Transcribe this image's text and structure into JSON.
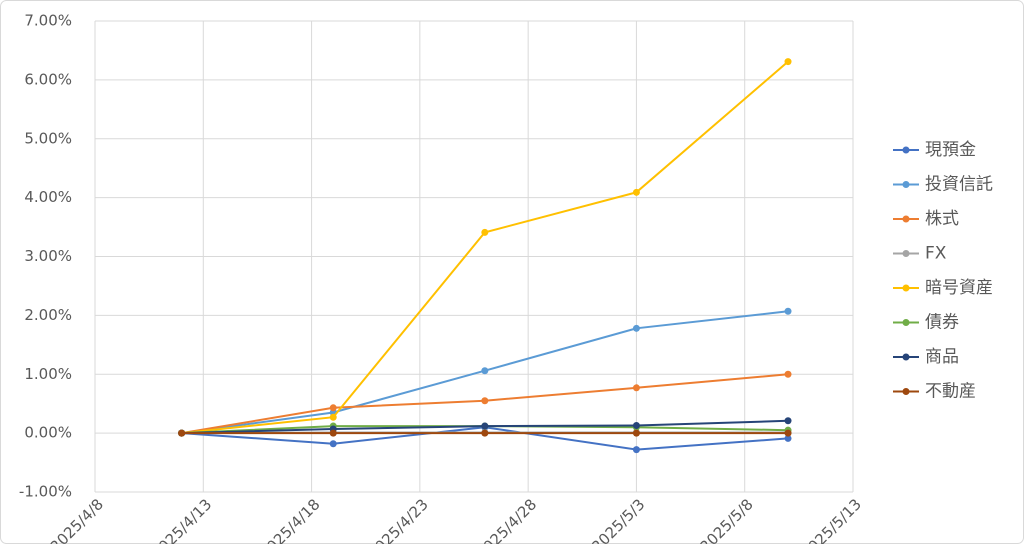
{
  "chart_data": {
    "type": "line",
    "x": [
      "2025/4/12",
      "2025/4/19",
      "2025/4/26",
      "2025/5/3",
      "2025/5/10"
    ],
    "xlim": [
      "2025/4/8",
      "2025/5/13"
    ],
    "xticks": [
      "2025/4/8",
      "2025/4/13",
      "2025/4/18",
      "2025/4/23",
      "2025/4/28",
      "2025/5/3",
      "2025/5/8",
      "2025/5/13"
    ],
    "ylim": [
      -1,
      7
    ],
    "yticks": [
      {
        "value": -1,
        "label": "-1.00%"
      },
      {
        "value": 0,
        "label": "0.00%"
      },
      {
        "value": 1,
        "label": "1.00%"
      },
      {
        "value": 2,
        "label": "2.00%"
      },
      {
        "value": 3,
        "label": "3.00%"
      },
      {
        "value": 4,
        "label": "4.00%"
      },
      {
        "value": 5,
        "label": "5.00%"
      },
      {
        "value": 6,
        "label": "6.00%"
      },
      {
        "value": 7,
        "label": "7.00%"
      }
    ],
    "grid": true,
    "legend": "right",
    "series": [
      {
        "name": "現預金",
        "color": "#4472c4",
        "values": [
          0,
          -0.18,
          0.1,
          -0.28,
          -0.09
        ]
      },
      {
        "name": "投資信託",
        "color": "#5b9bd5",
        "values": [
          0,
          0.35,
          1.06,
          1.78,
          2.07
        ]
      },
      {
        "name": "株式",
        "color": "#ed7d31",
        "values": [
          0,
          0.43,
          0.55,
          0.77,
          1.0
        ]
      },
      {
        "name": "FX",
        "color": "#a5a5a5",
        "values": [
          0,
          0.01,
          0.01,
          0.01,
          0.01
        ]
      },
      {
        "name": "暗号資産",
        "color": "#ffc000",
        "values": [
          0,
          0.27,
          3.41,
          4.09,
          6.31
        ]
      },
      {
        "name": "債券",
        "color": "#70ad47",
        "values": [
          0,
          0.12,
          0.12,
          0.1,
          0.05
        ]
      },
      {
        "name": "商品",
        "color": "#264478",
        "values": [
          0,
          0.07,
          0.12,
          0.13,
          0.21
        ]
      },
      {
        "name": "不動産",
        "color": "#9e480e",
        "values": [
          0,
          0,
          0,
          0,
          0
        ]
      }
    ]
  }
}
